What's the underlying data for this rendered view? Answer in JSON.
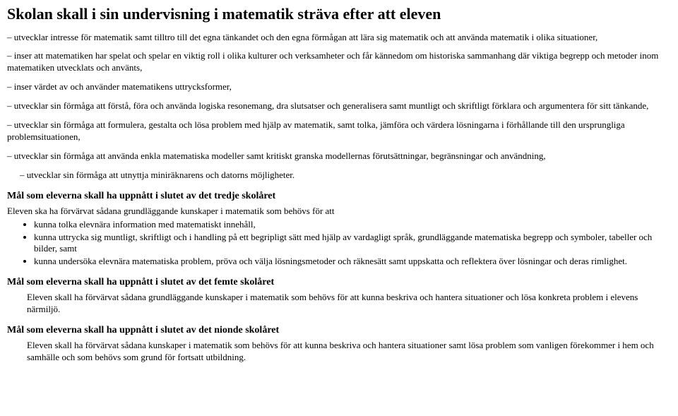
{
  "title": "Skolan skall i sin undervisning i matematik sträva efter att eleven",
  "paras": [
    "– utvecklar intresse för matematik samt tilltro till det egna tänkandet och den egna förmågan att lära sig matematik och att använda matematik i olika situationer,",
    "– inser att matematiken har spelat och spelar en viktig roll i olika kulturer och verksamheter och får kännedom om historiska sammanhang där viktiga begrepp och metoder inom matematiken utvecklats och använts,",
    "– inser värdet av och använder matematikens uttrycksformer,",
    "– utvecklar sin förmåga att förstå, föra och använda logiska resonemang, dra slutsatser och generalisera samt muntligt och skriftligt förklara och argumentera för sitt tänkande,",
    "– utvecklar sin förmåga att formulera, gestalta och lösa problem med hjälp av matematik, samt tolka, jämföra och värdera lösningarna i förhållande till den ursprungliga problemsituationen,",
    "– utvecklar sin förmåga att använda enkla matematiska modeller samt kritiskt granska modellernas förutsättningar, begränsningar och användning,"
  ],
  "para_indent": "–   utvecklar sin förmåga att utnyttja miniräknarens och datorns möjligheter.",
  "h_tredje": "Mål som eleverna skall ha uppnått i slutet av det tredje skolåret",
  "tredje_intro": "Eleven ska ha förvärvat sådana grundläggande kunskaper i matematik som behövs för att",
  "tredje_items": [
    "kunna tolka elevnära information med matematiskt innehåll,",
    "kunna uttrycka sig muntligt, skriftligt och i handling på ett begripligt sätt med hjälp av vardagligt språk, grundläggande matematiska begrepp och symboler, tabeller och bilder, samt",
    "kunna undersöka elevnära matematiska problem, pröva och välja lösningsmetoder och räknesätt samt uppskatta och reflektera över lösningar och deras rimlighet."
  ],
  "h_femte": "Mål som eleverna skall ha uppnått i slutet av det femte skolåret",
  "femte_text": "Eleven skall ha förvärvat sådana grundläggande kunskaper i matematik som behövs för att kunna beskriva och hantera situationer och lösa konkreta problem i elevens närmiljö.",
  "h_nionde": "Mål som eleverna skall ha uppnått i slutet av det nionde skolåret",
  "nionde_text": "Eleven skall ha förvärvat sådana kunskaper i matematik som behövs för att kunna beskriva och hantera situationer samt lösa problem som vanligen förekommer i hem och samhälle och som behövs som grund för fortsatt utbildning."
}
